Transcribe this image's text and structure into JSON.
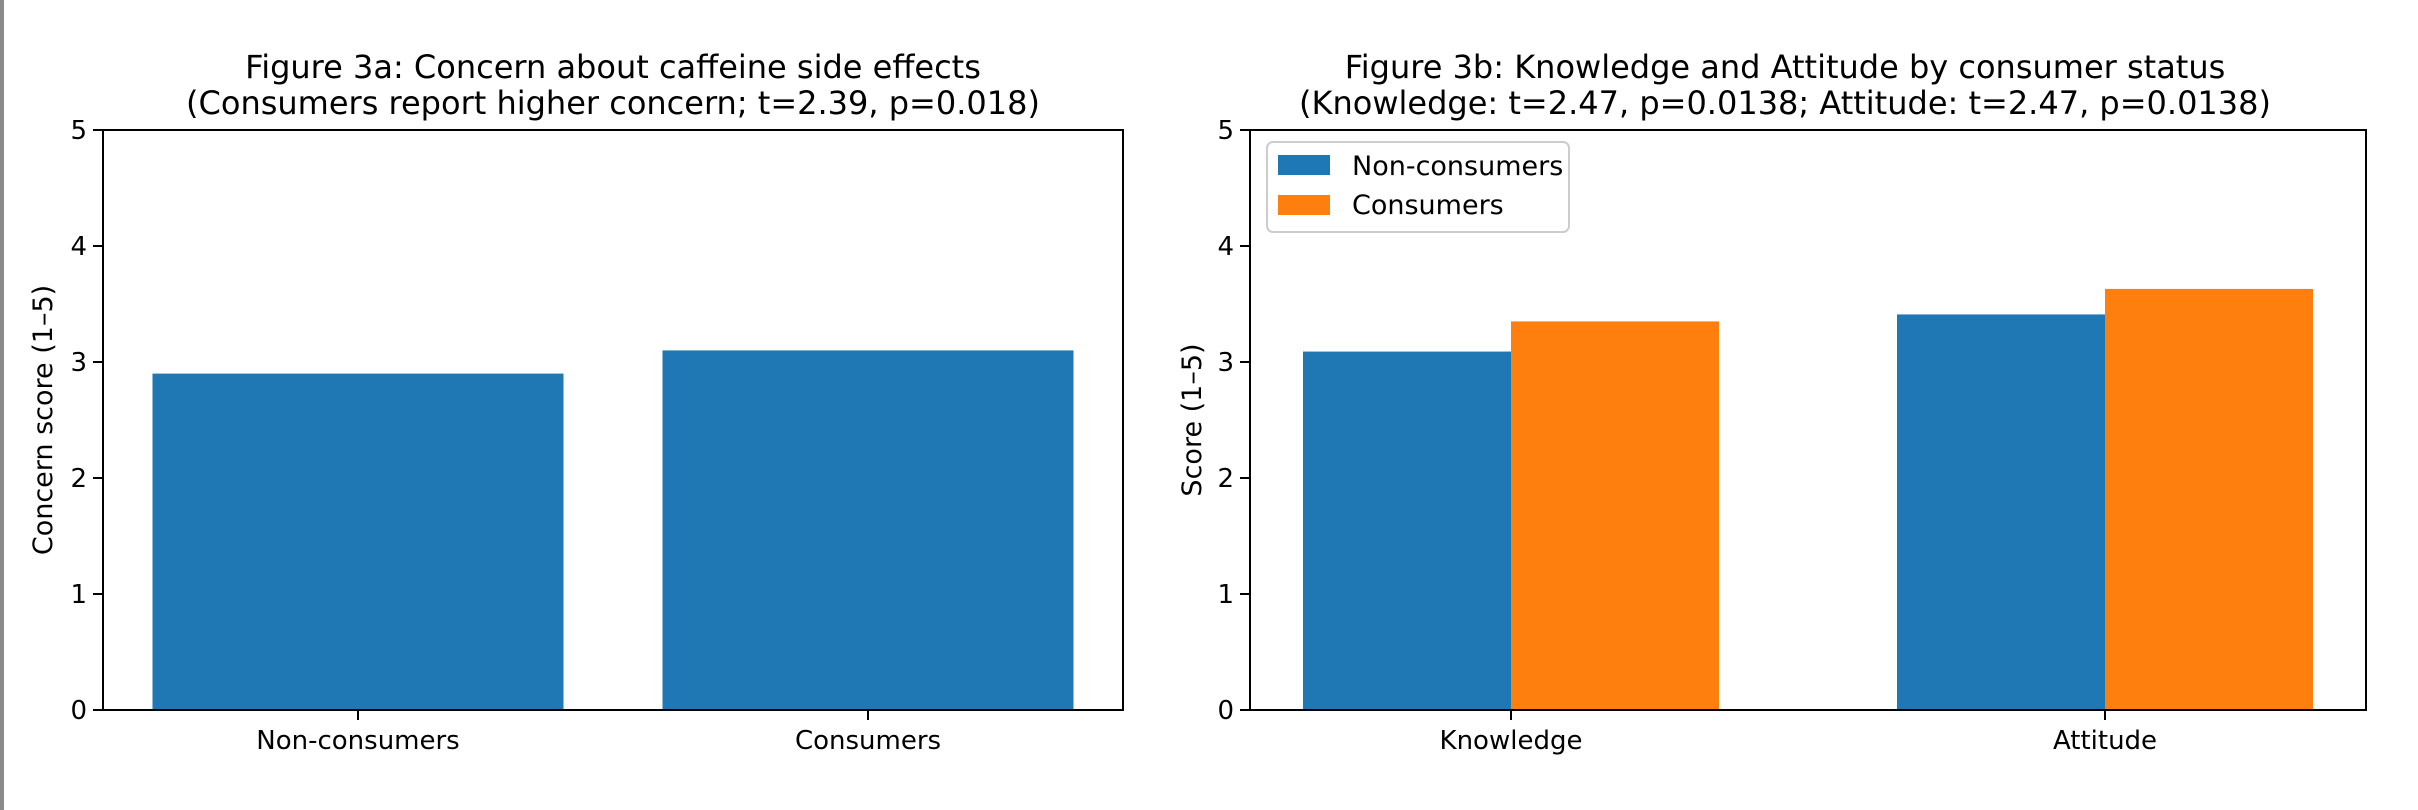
{
  "chart_data": [
    {
      "type": "bar",
      "title": "Figure 3a: Concern about caffeine side effects",
      "subtitle": "(Consumers report higher concern; t=2.39, p=0.018)",
      "categories": [
        "Non-consumers",
        "Consumers"
      ],
      "values": [
        2.9,
        3.1
      ],
      "xlabel": "",
      "ylabel": "Concern score (1–5)",
      "ylim": [
        0,
        5
      ],
      "yticks": [
        "0",
        "1",
        "2",
        "3",
        "4",
        "5"
      ],
      "color": "#1f77b4"
    },
    {
      "type": "bar",
      "title": "Figure 3b: Knowledge and Attitude by consumer status",
      "subtitle": "(Knowledge: t=2.47, p=0.0138; Attitude: t=2.47, p=0.0138)",
      "categories": [
        "Knowledge",
        "Attitude"
      ],
      "series": [
        {
          "name": "Non-consumers",
          "values": [
            3.09,
            3.41
          ],
          "color": "#1f77b4"
        },
        {
          "name": "Consumers",
          "values": [
            3.35,
            3.63
          ],
          "color": "#ff7f0e"
        }
      ],
      "xlabel": "",
      "ylabel": "Score (1–5)",
      "ylim": [
        0,
        5
      ],
      "yticks": [
        "0",
        "1",
        "2",
        "3",
        "4",
        "5"
      ],
      "legend": "top-left"
    }
  ]
}
